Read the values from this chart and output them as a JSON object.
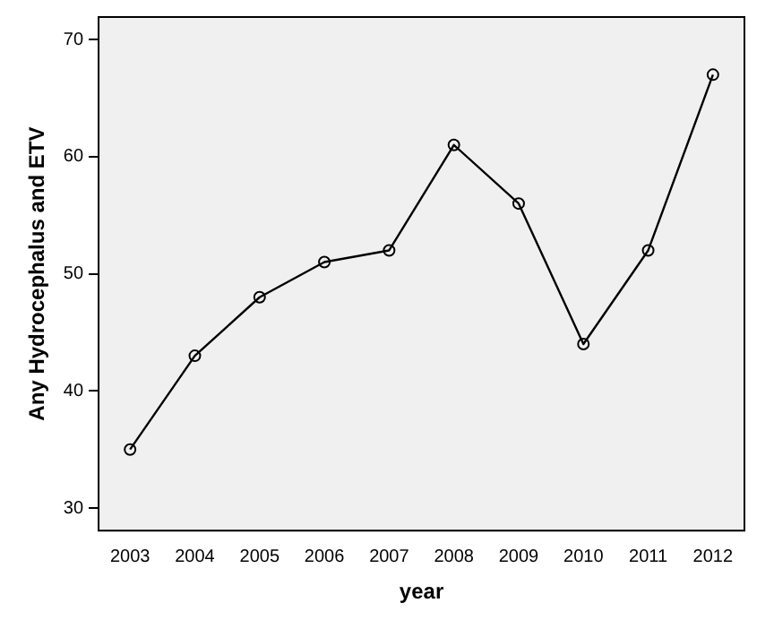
{
  "chart_data": {
    "type": "line",
    "xlabel": "year",
    "ylabel": "Any Hydrocephalus and ETV",
    "categories": [
      "2003",
      "2004",
      "2005",
      "2006",
      "2007",
      "2008",
      "2009",
      "2010",
      "2011",
      "2012"
    ],
    "series": [
      {
        "color": "#000000",
        "values": [
          35,
          43,
          48,
          51,
          52,
          61,
          56,
          44,
          52,
          67
        ]
      }
    ],
    "ylim": [
      28,
      72
    ],
    "yticks": [
      30,
      40,
      50,
      60,
      70
    ],
    "grid": false,
    "legend": false,
    "marker": "circle",
    "line_style": "solid"
  }
}
